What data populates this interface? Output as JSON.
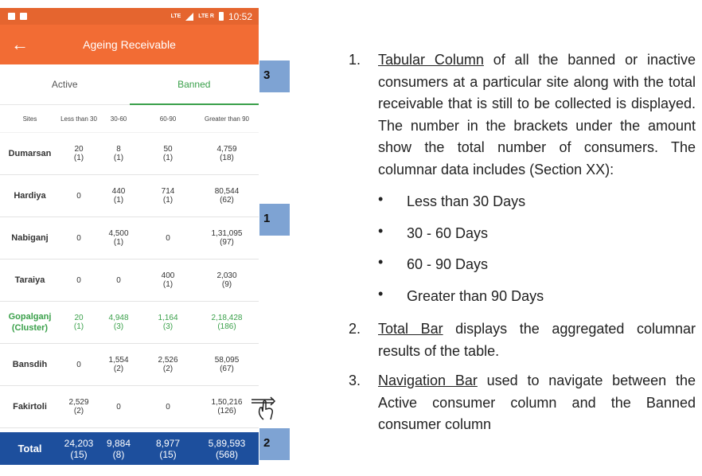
{
  "status_bar": {
    "network1": "LTE",
    "network2": "LTE R",
    "time": "10:52"
  },
  "app_bar": {
    "title": "Ageing Receivable",
    "back_icon": "arrow-left-icon"
  },
  "tabs": [
    {
      "label": "Active"
    },
    {
      "label": "Banned"
    }
  ],
  "table": {
    "columns": [
      "Sites",
      "Less than 30",
      "30-60",
      "60-90",
      "Greater than 90"
    ],
    "rows": [
      {
        "site": "Dumarsan",
        "c1": "20",
        "c1n": "(1)",
        "c2": "8",
        "c2n": "(1)",
        "c3": "50",
        "c3n": "(1)",
        "c4": "4,759",
        "c4n": "(18)"
      },
      {
        "site": "Hardiya",
        "c1": "0",
        "c1n": "",
        "c2": "440",
        "c2n": "(1)",
        "c3": "714",
        "c3n": "(1)",
        "c4": "80,544",
        "c4n": "(62)"
      },
      {
        "site": "Nabiganj",
        "c1": "0",
        "c1n": "",
        "c2": "4,500",
        "c2n": "(1)",
        "c3": "0",
        "c3n": "",
        "c4": "1,31,095",
        "c4n": "(97)"
      },
      {
        "site": "Taraiya",
        "c1": "0",
        "c1n": "",
        "c2": "0",
        "c2n": "",
        "c3": "400",
        "c3n": "(1)",
        "c4": "2,030",
        "c4n": "(9)"
      },
      {
        "site": "Gopalganj",
        "site2": "(Cluster)",
        "c1": "20",
        "c1n": "(1)",
        "c2": "4,948",
        "c2n": "(3)",
        "c3": "1,164",
        "c3n": "(3)",
        "c4": "2,18,428",
        "c4n": "(186)"
      },
      {
        "site": "Bansdih",
        "c1": "0",
        "c1n": "",
        "c2": "1,554",
        "c2n": "(2)",
        "c3": "2,526",
        "c3n": "(2)",
        "c4": "58,095",
        "c4n": "(67)"
      },
      {
        "site": "Fakirtoli",
        "c1": "2,529",
        "c1n": "(2)",
        "c2": "0",
        "c2n": "",
        "c3": "0",
        "c3n": "",
        "c4": "1,50,216",
        "c4n": "(126)"
      }
    ]
  },
  "total": {
    "label": "Total",
    "c1": "24,203",
    "c1n": "(15)",
    "c2": "9,884",
    "c2n": "(8)",
    "c3": "8,977",
    "c3n": "(15)",
    "c4": "5,89,593",
    "c4n": "(568)"
  },
  "markers": {
    "m1": "1",
    "m2": "2",
    "m3": "3"
  },
  "notes": {
    "item1": {
      "num": "1.",
      "title": "Tabular Column",
      "text": " of all the banned or inactive consumers at a particular site along with the total receivable that is still to be collected is displayed. The number in the brackets under the amount show the total number of consumers. The columnar data includes (Section XX):",
      "bullets": [
        "Less than 30 Days",
        "30 - 60 Days",
        "60 - 90 Days",
        "Greater than 90 Days"
      ]
    },
    "item2": {
      "num": "2.",
      "title": "Total Bar",
      "text": " displays the aggregated columnar results of the table."
    },
    "item3": {
      "num": "3.",
      "title": "Navigation Bar",
      "text": " used to navigate between the Active consumer column and the Banned consumer column"
    }
  },
  "colors": {
    "orange": "#f26c34",
    "green": "#3aa04a",
    "total_blue": "#1d4f9d",
    "marker_blue": "#7ea3d3"
  }
}
